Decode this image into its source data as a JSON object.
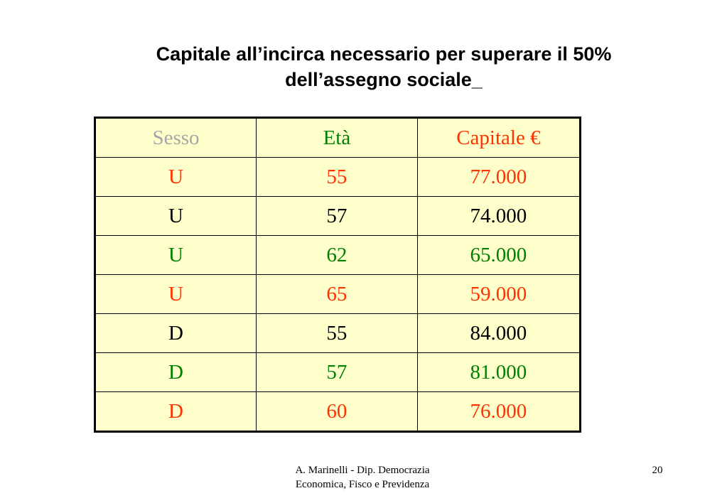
{
  "slide": {
    "title_line1": "Capitale all’incirca necessario per superare il 50%",
    "title_line2": "dell’assegno sociale_"
  },
  "colors": {
    "header_gray": "#a6a6a6",
    "red": "#ff3300",
    "green": "#008000",
    "black": "#000000",
    "table_bg": "#ffffcc"
  },
  "table": {
    "headers": [
      {
        "text": "Sesso",
        "color": "#a6a6a6"
      },
      {
        "text": "Età",
        "color": "#008000"
      },
      {
        "text": "Capitale €",
        "color": "#ff3300"
      }
    ],
    "rows": [
      {
        "sesso": "U",
        "eta": "55",
        "capitale": "77.000",
        "color": "#ff3300"
      },
      {
        "sesso": "U",
        "eta": "57",
        "capitale": "74.000",
        "color": "#000000"
      },
      {
        "sesso": "U",
        "eta": "62",
        "capitale": "65.000",
        "color": "#008000"
      },
      {
        "sesso": "U",
        "eta": "65",
        "capitale": "59.000",
        "color": "#ff3300"
      },
      {
        "sesso": "D",
        "eta": "55",
        "capitale": "84.000",
        "color": "#000000"
      },
      {
        "sesso": "D",
        "eta": "57",
        "capitale": "81.000",
        "color": "#008000"
      },
      {
        "sesso": "D",
        "eta": "60",
        "capitale": "76.000",
        "color": "#ff3300"
      }
    ]
  },
  "footer": {
    "line1": "A. Marinelli - Dip. Democrazia",
    "line2": "Economica,  Fisco e Previdenza",
    "page_number": "20"
  }
}
